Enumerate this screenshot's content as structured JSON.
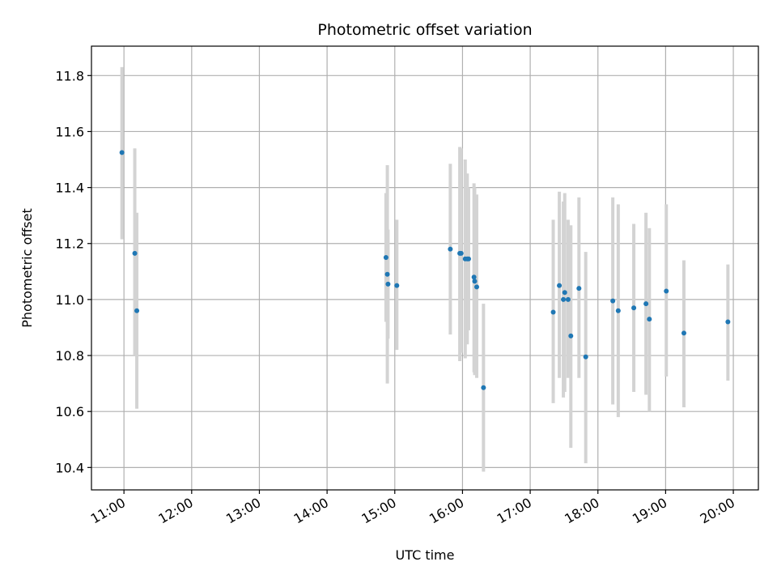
{
  "chart_data": {
    "type": "scatter",
    "title": "Photometric offset variation",
    "xlabel": "UTC time",
    "ylabel": "Photometric offset",
    "x_unit": "hours UTC",
    "xlim": [
      10.52,
      20.37
    ],
    "ylim": [
      10.32,
      11.905
    ],
    "x_ticks": [
      {
        "value": 11,
        "label": "11:00"
      },
      {
        "value": 12,
        "label": "12:00"
      },
      {
        "value": 13,
        "label": "13:00"
      },
      {
        "value": 14,
        "label": "14:00"
      },
      {
        "value": 15,
        "label": "15:00"
      },
      {
        "value": 16,
        "label": "16:00"
      },
      {
        "value": 17,
        "label": "17:00"
      },
      {
        "value": 18,
        "label": "18:00"
      },
      {
        "value": 19,
        "label": "19:00"
      },
      {
        "value": 20,
        "label": "20:00"
      }
    ],
    "y_ticks": [
      {
        "value": 10.4,
        "label": "10.4"
      },
      {
        "value": 10.6,
        "label": "10.6"
      },
      {
        "value": 10.8,
        "label": "10.8"
      },
      {
        "value": 11.0,
        "label": "11.0"
      },
      {
        "value": 11.2,
        "label": "11.2"
      },
      {
        "value": 11.4,
        "label": "11.4"
      },
      {
        "value": 11.6,
        "label": "11.6"
      },
      {
        "value": 11.8,
        "label": "11.8"
      }
    ],
    "grid": true,
    "series": [
      {
        "point_color": "#1f77b4",
        "errorbar_color": "#d3d3d3",
        "points": [
          {
            "x": 10.97,
            "y": 11.525,
            "lo": 11.215,
            "hi": 11.83
          },
          {
            "x": 11.16,
            "y": 11.165,
            "lo": 10.8,
            "hi": 11.54
          },
          {
            "x": 11.19,
            "y": 10.96,
            "lo": 10.61,
            "hi": 11.31
          },
          {
            "x": 14.87,
            "y": 11.15,
            "lo": 10.92,
            "hi": 11.38
          },
          {
            "x": 14.89,
            "y": 11.09,
            "lo": 10.7,
            "hi": 11.48
          },
          {
            "x": 14.9,
            "y": 11.055,
            "lo": 10.86,
            "hi": 11.25
          },
          {
            "x": 15.03,
            "y": 11.05,
            "lo": 10.82,
            "hi": 11.285
          },
          {
            "x": 15.82,
            "y": 11.18,
            "lo": 10.875,
            "hi": 11.485
          },
          {
            "x": 15.96,
            "y": 11.165,
            "lo": 10.78,
            "hi": 11.545
          },
          {
            "x": 15.98,
            "y": 11.165,
            "lo": 10.81,
            "hi": 11.54
          },
          {
            "x": 16.04,
            "y": 11.145,
            "lo": 10.79,
            "hi": 11.5
          },
          {
            "x": 16.07,
            "y": 11.145,
            "lo": 10.84,
            "hi": 11.45
          },
          {
            "x": 16.09,
            "y": 11.145,
            "lo": 10.89,
            "hi": 11.4
          },
          {
            "x": 16.17,
            "y": 11.08,
            "lo": 10.74,
            "hi": 11.415
          },
          {
            "x": 16.18,
            "y": 11.065,
            "lo": 10.73,
            "hi": 11.4
          },
          {
            "x": 16.21,
            "y": 11.045,
            "lo": 10.72,
            "hi": 11.375
          },
          {
            "x": 16.31,
            "y": 10.685,
            "lo": 10.385,
            "hi": 10.985
          },
          {
            "x": 17.34,
            "y": 10.955,
            "lo": 10.63,
            "hi": 11.285
          },
          {
            "x": 17.43,
            "y": 11.05,
            "lo": 10.72,
            "hi": 11.385
          },
          {
            "x": 17.49,
            "y": 11.0,
            "lo": 10.65,
            "hi": 11.35
          },
          {
            "x": 17.51,
            "y": 11.025,
            "lo": 10.67,
            "hi": 11.38
          },
          {
            "x": 17.56,
            "y": 11.0,
            "lo": 10.72,
            "hi": 11.285
          },
          {
            "x": 17.6,
            "y": 10.87,
            "lo": 10.47,
            "hi": 11.265
          },
          {
            "x": 17.72,
            "y": 11.04,
            "lo": 10.72,
            "hi": 11.365
          },
          {
            "x": 17.82,
            "y": 10.795,
            "lo": 10.415,
            "hi": 11.17
          },
          {
            "x": 18.22,
            "y": 10.995,
            "lo": 10.625,
            "hi": 11.365
          },
          {
            "x": 18.3,
            "y": 10.96,
            "lo": 10.58,
            "hi": 11.34
          },
          {
            "x": 18.53,
            "y": 10.97,
            "lo": 10.67,
            "hi": 11.27
          },
          {
            "x": 18.71,
            "y": 10.985,
            "lo": 10.66,
            "hi": 11.31
          },
          {
            "x": 18.76,
            "y": 10.93,
            "lo": 10.6,
            "hi": 11.255
          },
          {
            "x": 19.01,
            "y": 11.03,
            "lo": 10.725,
            "hi": 11.34
          },
          {
            "x": 19.27,
            "y": 10.88,
            "lo": 10.615,
            "hi": 11.14
          },
          {
            "x": 19.92,
            "y": 10.92,
            "lo": 10.71,
            "hi": 11.125
          }
        ]
      }
    ]
  }
}
